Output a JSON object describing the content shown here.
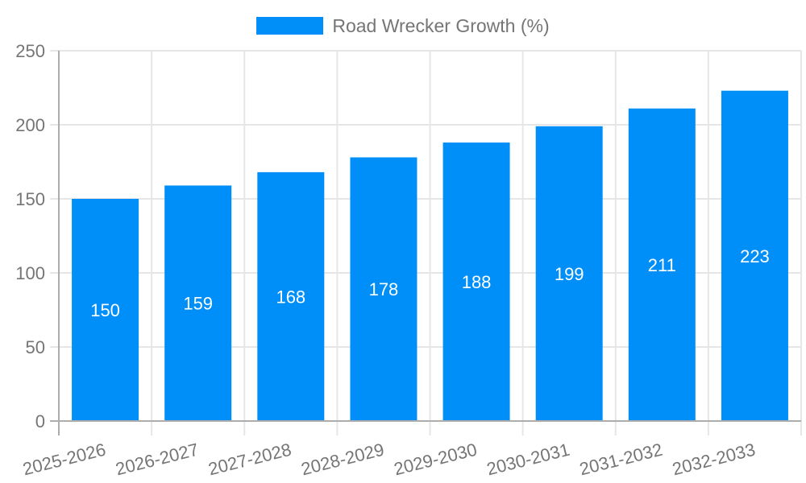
{
  "chart_data": {
    "type": "bar",
    "title": "",
    "legend": "Road Wrecker Growth (%)",
    "legend_position": "top-center",
    "categories": [
      "2025-2026",
      "2026-2027",
      "2027-2028",
      "2028-2029",
      "2029-2030",
      "2030-2031",
      "2031-2032",
      "2032-2033"
    ],
    "values": [
      150,
      159,
      168,
      178,
      188,
      199,
      211,
      223
    ],
    "xlabel": "",
    "ylabel": "",
    "ylim": [
      0,
      250
    ],
    "yticks": [
      0,
      50,
      100,
      150,
      200,
      250
    ],
    "grid": true,
    "value_labels": "inside-center",
    "colors": {
      "bar": "#008FF8",
      "value_label_text": "#FFFFFF",
      "axis_text": "#757575",
      "gridline": "#E6E6E6",
      "axis_line": "#ADADAD",
      "background": "#FFFFFF"
    }
  }
}
